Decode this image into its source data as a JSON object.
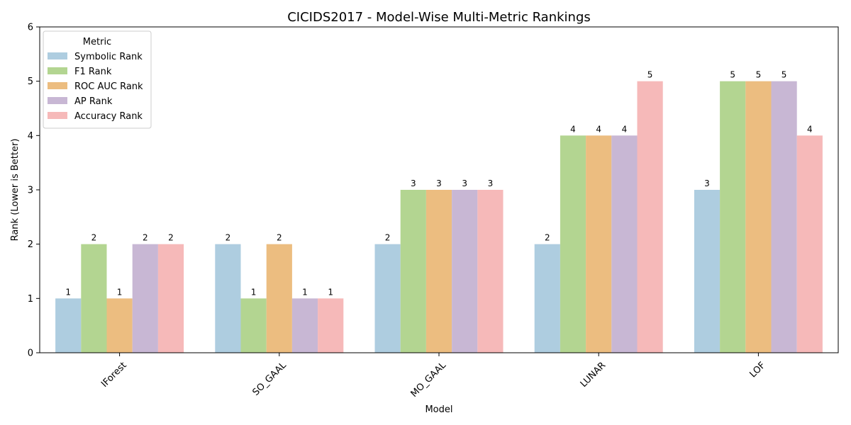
{
  "chart_data": {
    "type": "bar",
    "title": "CICIDS2017 - Model-Wise Multi-Metric Rankings",
    "xlabel": "Model",
    "ylabel": "Rank (Lower is Better)",
    "ylim": [
      0,
      6
    ],
    "yticks": [
      "0",
      "1",
      "2",
      "3",
      "4",
      "5",
      "6"
    ],
    "grid": false,
    "categories": [
      "IForest",
      "SO_GAAL",
      "MO_GAAL",
      "LUNAR",
      "LOF"
    ],
    "legend": {
      "title": "Metric",
      "placement": "top-left"
    },
    "series": [
      {
        "name": "Symbolic Rank",
        "color": "#aecde0",
        "values": [
          1,
          2,
          2,
          2,
          3
        ]
      },
      {
        "name": "F1 Rank",
        "color": "#b3d591",
        "values": [
          2,
          1,
          3,
          4,
          5
        ]
      },
      {
        "name": "ROC AUC Rank",
        "color": "#ecbd80",
        "values": [
          1,
          2,
          3,
          4,
          5
        ]
      },
      {
        "name": "AP Rank",
        "color": "#c8b7d4",
        "values": [
          2,
          1,
          3,
          4,
          5
        ]
      },
      {
        "name": "Accuracy Rank",
        "color": "#f6b9b9",
        "values": [
          2,
          1,
          3,
          5,
          4
        ]
      }
    ]
  }
}
